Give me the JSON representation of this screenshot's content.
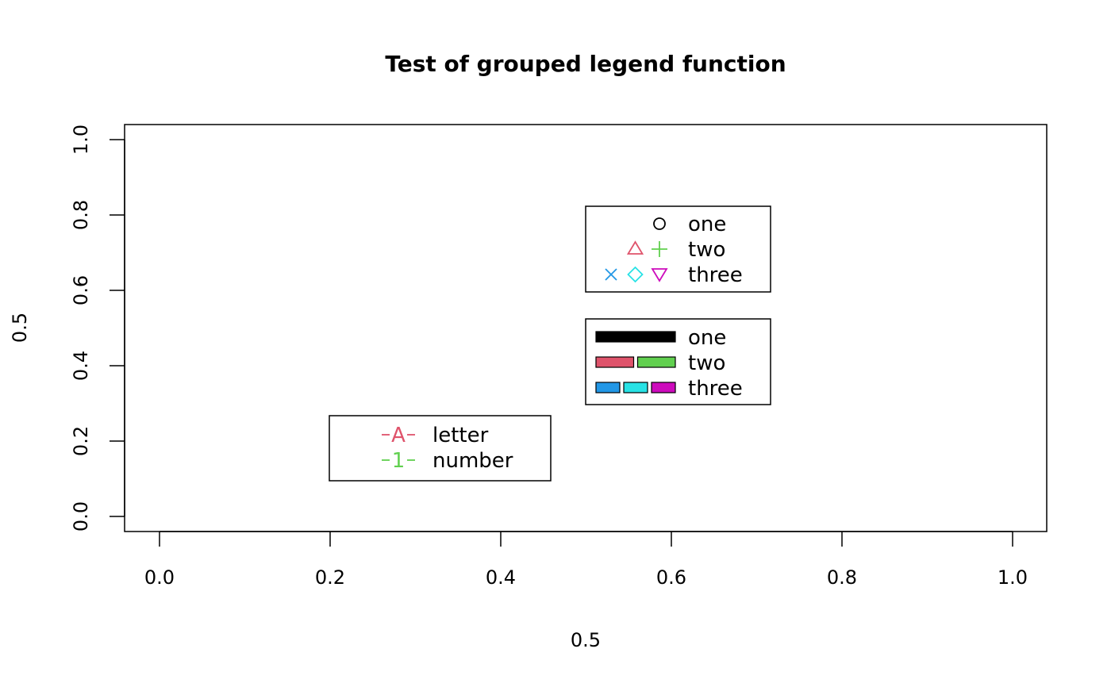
{
  "chart_data": {
    "type": "scatter",
    "title": "Test of grouped legend function",
    "xlabel": "0.5",
    "ylabel": "0.5",
    "xlim": [
      0,
      1
    ],
    "ylim": [
      0,
      1
    ],
    "x_ticks": [
      "0.0",
      "0.2",
      "0.4",
      "0.6",
      "0.8",
      "1.0"
    ],
    "y_ticks": [
      "0.0",
      "0.2",
      "0.4",
      "0.6",
      "0.8",
      "1.0"
    ],
    "grid": false,
    "points": [],
    "legends": [
      {
        "kind": "points",
        "entries": [
          {
            "label": "one",
            "symbols": [
              {
                "pch": "circle",
                "color": "#000000"
              }
            ]
          },
          {
            "label": "two",
            "symbols": [
              {
                "pch": "triangle-up",
                "color": "#DF536B"
              },
              {
                "pch": "plus",
                "color": "#61D04F"
              }
            ]
          },
          {
            "label": "three",
            "symbols": [
              {
                "pch": "cross",
                "color": "#2297E6"
              },
              {
                "pch": "diamond",
                "color": "#28E2E5"
              },
              {
                "pch": "triangle-down",
                "color": "#CD0BBC"
              }
            ]
          }
        ]
      },
      {
        "kind": "fill",
        "entries": [
          {
            "label": "one",
            "fills": [
              "#000000"
            ]
          },
          {
            "label": "two",
            "fills": [
              "#DF536B",
              "#61D04F"
            ]
          },
          {
            "label": "three",
            "fills": [
              "#2297E6",
              "#28E2E5",
              "#CD0BBC"
            ]
          }
        ]
      },
      {
        "kind": "line-text",
        "entries": [
          {
            "label": "letter",
            "glyph": "A",
            "color": "#DF536B"
          },
          {
            "label": "number",
            "glyph": "1",
            "color": "#61D04F"
          }
        ]
      }
    ]
  }
}
